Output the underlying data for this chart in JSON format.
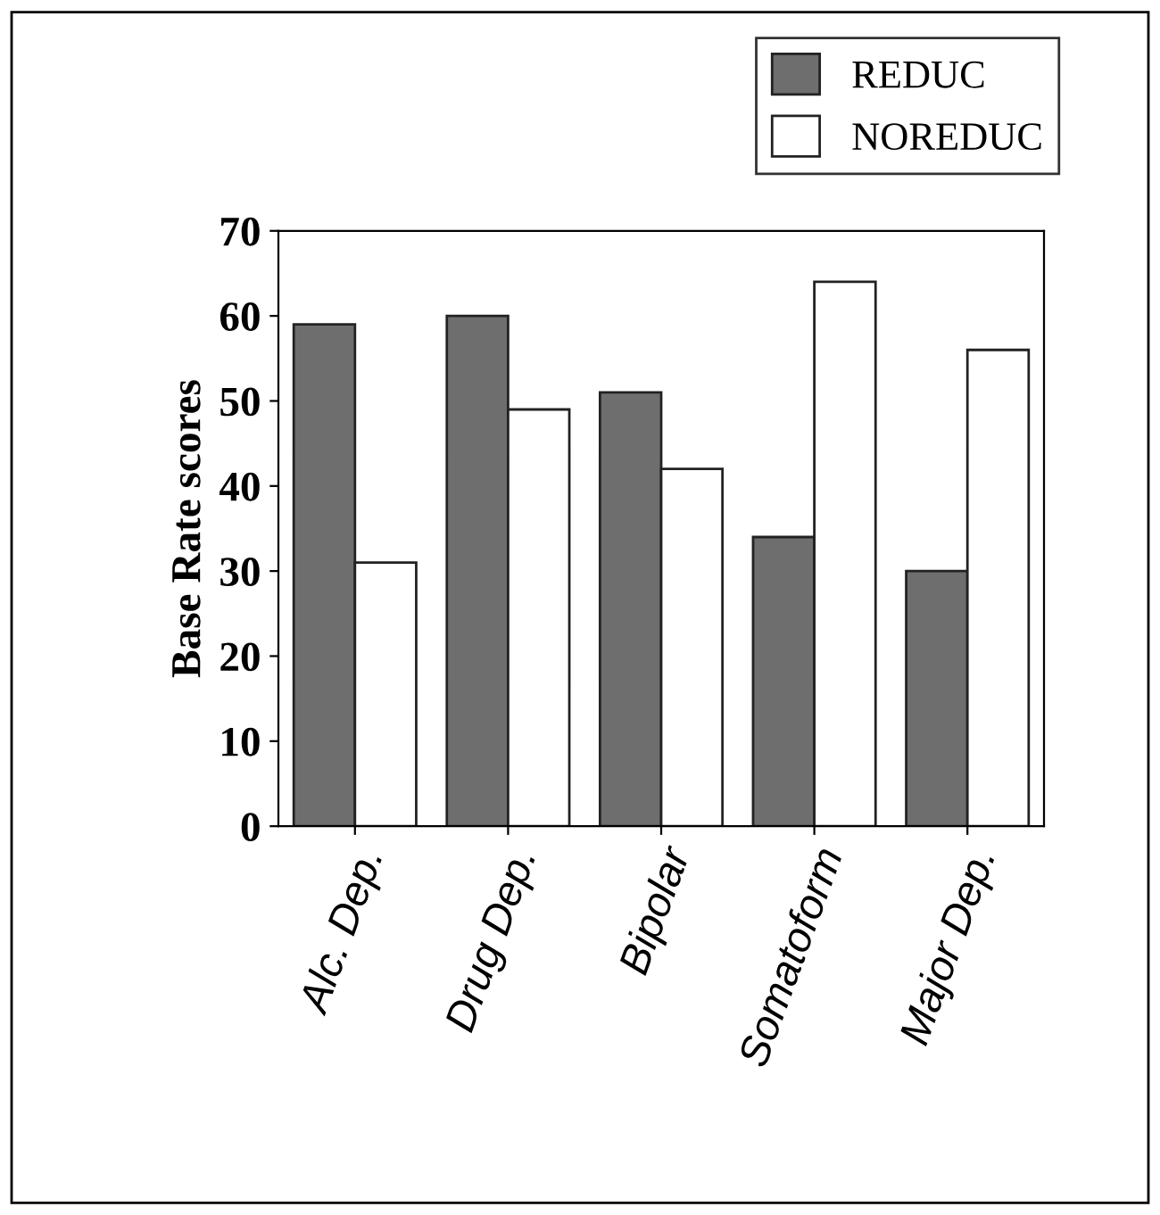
{
  "chart_data": {
    "type": "bar",
    "ylabel": "Base Rate scores",
    "categories": [
      "Alc. Dep.",
      "Drug Dep.",
      "Bipolar",
      "Somatoform",
      "Major Dep."
    ],
    "series": [
      {
        "name": "REDUC",
        "color": "#6e6e6e",
        "values": [
          59,
          60,
          51,
          34,
          30
        ]
      },
      {
        "name": "NOREDUC",
        "color": "#ffffff",
        "values": [
          31,
          49,
          42,
          64,
          56
        ]
      }
    ],
    "ylim": [
      0,
      70
    ],
    "yticks": [
      0,
      10,
      20,
      30,
      40,
      50,
      60,
      70
    ],
    "grid": false,
    "legend": "top right"
  }
}
